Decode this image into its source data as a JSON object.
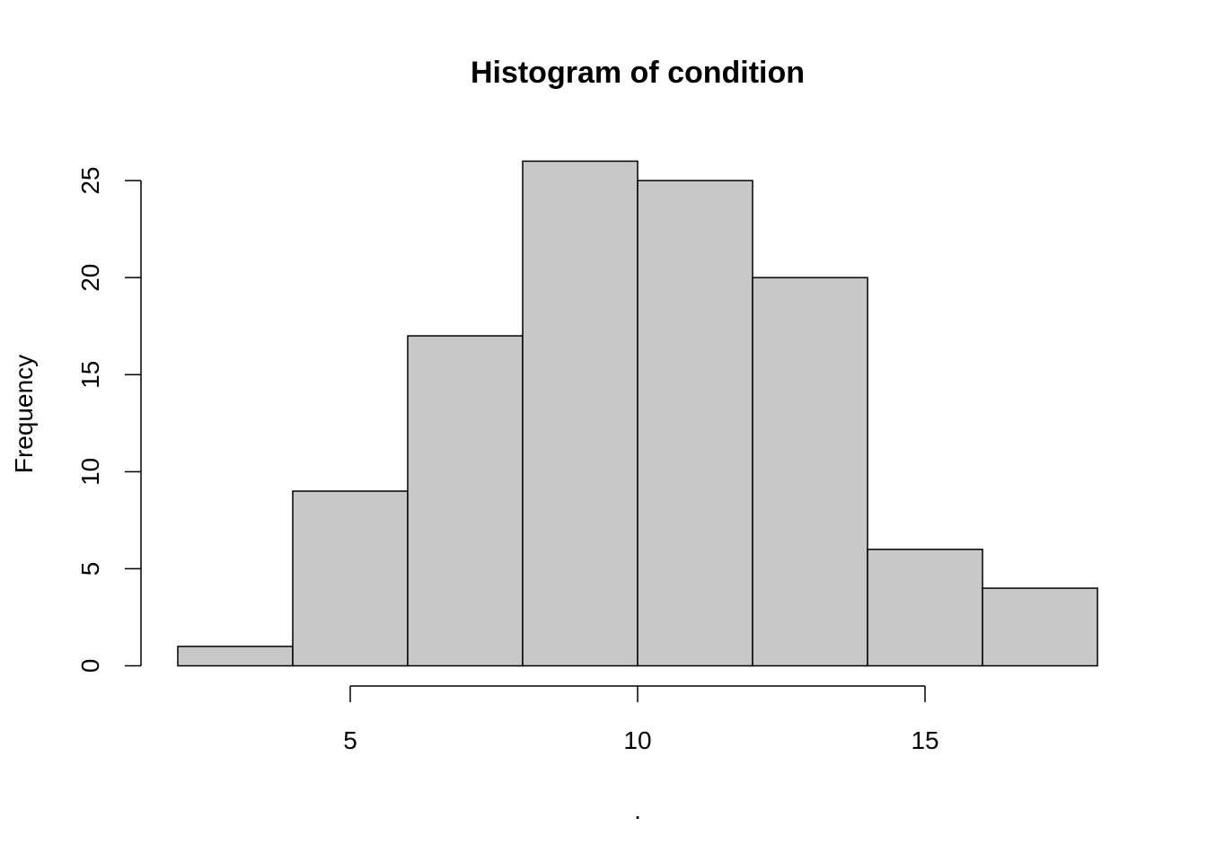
{
  "chart_data": {
    "type": "histogram",
    "title": "Histogram of condition",
    "xlabel": ".",
    "ylabel": "Frequency",
    "bins": [
      2,
      4,
      6,
      8,
      10,
      12,
      14,
      16,
      18
    ],
    "values": [
      1,
      9,
      17,
      26,
      25,
      20,
      6,
      4
    ],
    "color": "#c8c8c8",
    "edgecolor": "#000000",
    "xlim": [
      1.36,
      18.64
    ],
    "xticks": [
      5,
      10,
      15
    ],
    "ylim": [
      -1.04,
      27.04
    ],
    "yticks": [
      0,
      5,
      10,
      15,
      20,
      25
    ],
    "grid": false
  }
}
